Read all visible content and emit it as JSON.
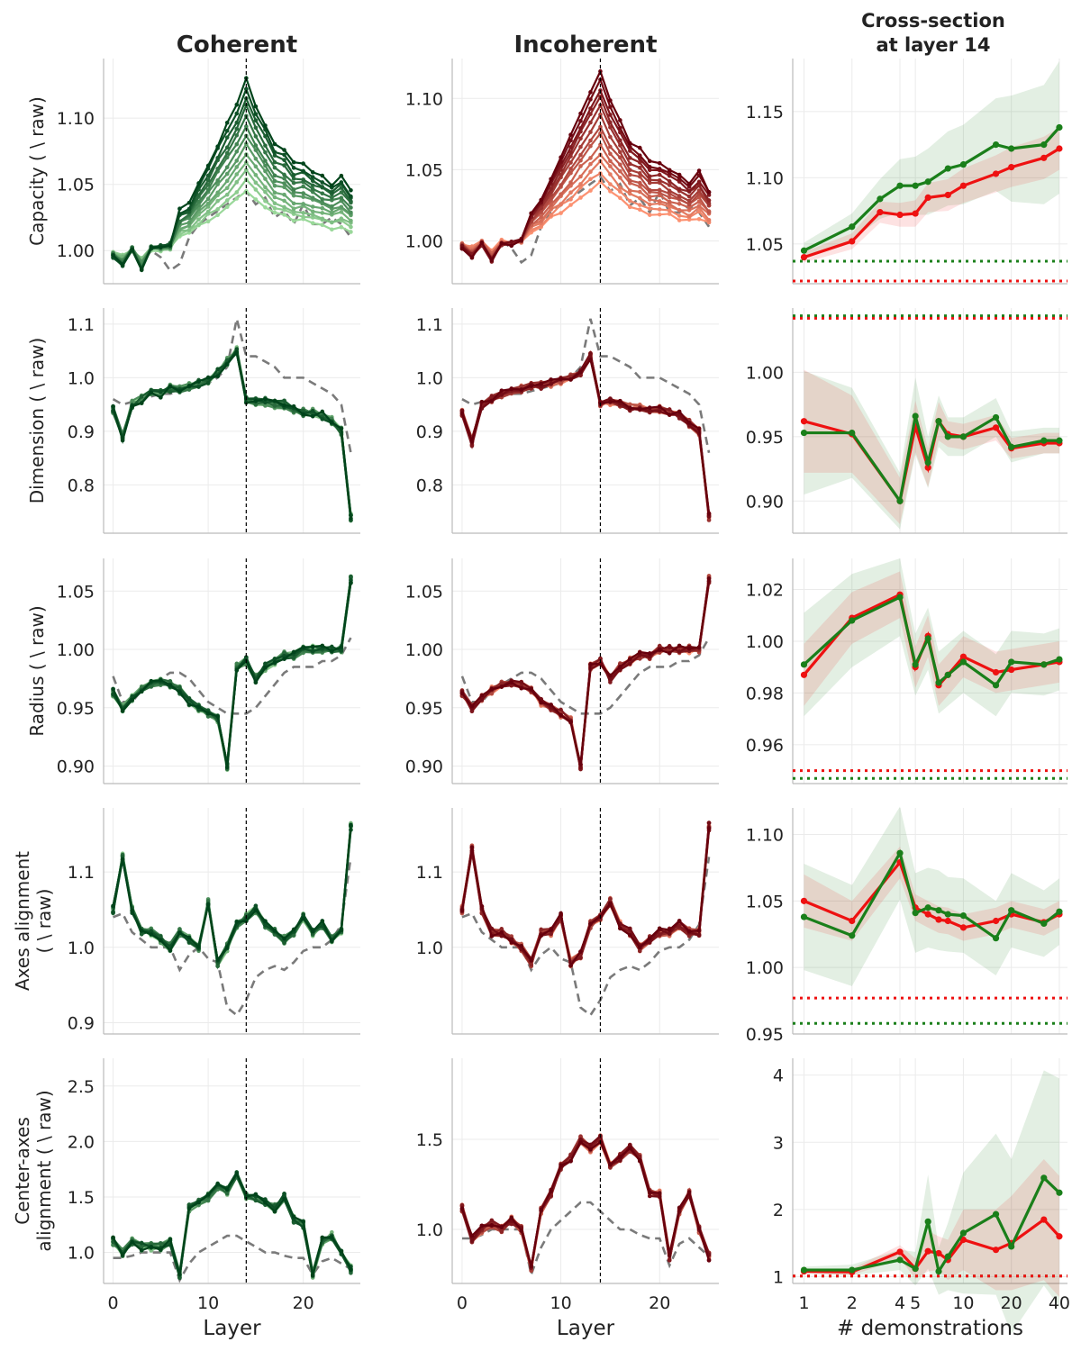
{
  "figure": {
    "column_titles": [
      "Coherent",
      "Incoherent",
      "Cross-section\nat layer 14"
    ],
    "xlabel_layer": "Layer",
    "xlabel_demos": "# demonstrations"
  },
  "chart_data": {
    "type": "line",
    "layers": [
      0,
      1,
      2,
      3,
      4,
      5,
      6,
      7,
      8,
      9,
      10,
      11,
      12,
      13,
      14,
      15,
      16,
      17,
      18,
      19,
      20,
      21,
      22,
      23,
      24,
      25
    ],
    "marker_layer": 14,
    "demonstrations": [
      1,
      2,
      3,
      4,
      5,
      6,
      7,
      8,
      10,
      12,
      16,
      20,
      25,
      32,
      40
    ],
    "demo_ticks": [
      1,
      2,
      4,
      5,
      10,
      20,
      40
    ],
    "colors": {
      "coherent": "#1a7f1a",
      "incoherent": "#ee1111",
      "raw": "#7a7a7a",
      "coherent_light": "#9ad89a",
      "coherent_dark": "#00441b",
      "incoherent_light": "#fc9272",
      "incoherent_dark": "#67000d"
    },
    "rows": [
      {
        "ylabel": "Capacity ( \\ raw)",
        "layer_ylim": [
          0.975,
          1.145
        ],
        "layer_yticks": [
          "1.00",
          "1.05",
          "1.10"
        ],
        "inc_ylim": [
          0.97,
          1.128
        ],
        "inc_yticks": [
          "1.00",
          "1.05",
          "1.10"
        ],
        "raw": [
          0.998,
          0.99,
          1.0,
          0.99,
          1.0,
          0.995,
          0.985,
          0.99,
          1.01,
          1.02,
          1.025,
          1.03,
          1.035,
          1.04,
          1.045,
          1.035,
          1.04,
          1.025,
          1.03,
          1.02,
          1.035,
          1.02,
          1.02,
          1.025,
          1.02,
          1.01
        ],
        "coherent_base": [
          0.995,
          0.988,
          1.002,
          0.985,
          1.003,
          1.003,
          1.005,
          1.03,
          1.035,
          1.05,
          1.065,
          1.08,
          1.095,
          1.11,
          1.13,
          1.11,
          1.095,
          1.08,
          1.075,
          1.065,
          1.065,
          1.06,
          1.055,
          1.05,
          1.055,
          1.045
        ],
        "incoherent_base": [
          0.995,
          0.988,
          0.998,
          0.985,
          0.998,
          0.998,
          1.0,
          1.02,
          1.03,
          1.045,
          1.06,
          1.075,
          1.09,
          1.105,
          1.12,
          1.1,
          1.085,
          1.07,
          1.065,
          1.055,
          1.055,
          1.05,
          1.045,
          1.04,
          1.048,
          1.035
        ],
        "cross": {
          "ylim": [
            1.02,
            1.19
          ],
          "yticks": [
            "1.05",
            "1.10",
            "1.15"
          ],
          "coherent": [
            1.045,
            1.063,
            1.084,
            1.094,
            1.094,
            1.097,
            1.107,
            1.11,
            1.125,
            1.122,
            1.125,
            1.138
          ],
          "incoherent": [
            1.04,
            1.052,
            1.074,
            1.072,
            1.073,
            1.085,
            1.087,
            1.094,
            1.103,
            1.108,
            1.115,
            1.122
          ],
          "coherent_band": [
            0.006,
            0.01,
            0.015,
            0.02,
            0.022,
            0.025,
            0.028,
            0.03,
            0.035,
            0.04,
            0.045,
            0.05
          ],
          "incoherent_band": [
            0.004,
            0.006,
            0.008,
            0.009,
            0.01,
            0.011,
            0.012,
            0.013,
            0.014,
            0.015,
            0.016,
            0.016
          ],
          "demos_used": [
            1,
            2,
            3,
            4,
            5,
            6,
            8,
            10,
            16,
            20,
            32,
            40
          ],
          "raw_coherent": 1.037,
          "raw_incoherent": 1.022
        }
      },
      {
        "ylabel": "Dimension ( \\ raw)",
        "layer_ylim": [
          0.71,
          1.13
        ],
        "layer_yticks": [
          "0.8",
          "0.9",
          "1.0",
          "1.1"
        ],
        "inc_ylim": [
          0.71,
          1.13
        ],
        "inc_yticks": [
          "0.8",
          "0.9",
          "1.0",
          "1.1"
        ],
        "raw": [
          0.96,
          0.95,
          0.955,
          0.96,
          0.965,
          0.97,
          0.97,
          0.975,
          0.98,
          0.985,
          0.99,
          1.0,
          1.02,
          1.11,
          1.04,
          1.04,
          1.03,
          1.02,
          1.0,
          1.0,
          1.0,
          0.99,
          0.98,
          0.97,
          0.95,
          0.86
        ],
        "coherent_base": [
          0.94,
          0.89,
          0.95,
          0.96,
          0.97,
          0.97,
          0.98,
          0.98,
          0.985,
          0.99,
          0.995,
          1.01,
          1.03,
          1.05,
          0.96,
          0.955,
          0.955,
          0.95,
          0.95,
          0.94,
          0.935,
          0.935,
          0.93,
          0.92,
          0.9,
          0.74
        ],
        "incoherent_base": [
          0.935,
          0.88,
          0.95,
          0.96,
          0.97,
          0.975,
          0.98,
          0.985,
          0.985,
          0.99,
          0.995,
          1.0,
          1.01,
          1.04,
          0.95,
          0.955,
          0.95,
          0.945,
          0.945,
          0.94,
          0.94,
          0.935,
          0.93,
          0.915,
          0.9,
          0.74
        ],
        "cross": {
          "ylim": [
            0.875,
            1.05
          ],
          "yticks": [
            "0.90",
            "0.95",
            "1.00"
          ],
          "coherent": [
            0.953,
            0.953,
            0.9,
            0.966,
            0.93,
            0.962,
            0.95,
            0.95,
            0.965,
            0.942,
            0.947,
            0.947
          ],
          "incoherent": [
            0.962,
            0.952,
            0.9,
            0.958,
            0.926,
            0.962,
            0.952,
            0.95,
            0.957,
            0.941,
            0.945,
            0.945
          ],
          "coherent_band": [
            0.048,
            0.035,
            0.022,
            0.03,
            0.02,
            0.02,
            0.015,
            0.015,
            0.015,
            0.012,
            0.01,
            0.01
          ],
          "incoherent_band": [
            0.04,
            0.03,
            0.018,
            0.02,
            0.015,
            0.015,
            0.01,
            0.01,
            0.01,
            0.008,
            0.008,
            0.008
          ],
          "demos_used": [
            1,
            2,
            4,
            5,
            6,
            7,
            8,
            10,
            16,
            20,
            32,
            40
          ],
          "raw_coherent": 1.044,
          "raw_incoherent": 1.042
        }
      },
      {
        "ylabel": "Radius ( \\ raw)",
        "layer_ylim": [
          0.885,
          1.078
        ],
        "layer_yticks": [
          "0.90",
          "0.95",
          "1.00",
          "1.05"
        ],
        "inc_ylim": [
          0.885,
          1.078
        ],
        "inc_yticks": [
          "0.90",
          "0.95",
          "1.00",
          "1.05"
        ],
        "raw": [
          0.977,
          0.955,
          0.955,
          0.965,
          0.97,
          0.975,
          0.98,
          0.98,
          0.975,
          0.965,
          0.955,
          0.95,
          0.945,
          0.945,
          0.945,
          0.95,
          0.96,
          0.97,
          0.98,
          0.985,
          0.985,
          0.985,
          0.99,
          0.99,
          0.995,
          1.01
        ],
        "coherent_base": [
          0.963,
          0.95,
          0.958,
          0.965,
          0.97,
          0.972,
          0.97,
          0.965,
          0.955,
          0.95,
          0.945,
          0.94,
          0.9,
          0.985,
          0.99,
          0.975,
          0.985,
          0.99,
          0.995,
          0.995,
          1.0,
          1.0,
          1.0,
          1.0,
          1.0,
          1.06
        ],
        "incoherent_base": [
          0.963,
          0.95,
          0.958,
          0.965,
          0.97,
          0.972,
          0.97,
          0.965,
          0.955,
          0.95,
          0.945,
          0.94,
          0.9,
          0.985,
          0.99,
          0.975,
          0.985,
          0.99,
          0.995,
          0.995,
          1.0,
          1.0,
          1.0,
          1.0,
          1.0,
          1.06
        ],
        "cross": {
          "ylim": [
            0.945,
            1.032
          ],
          "yticks": [
            "0.96",
            "0.98",
            "1.00",
            "1.02"
          ],
          "coherent": [
            0.991,
            1.008,
            1.017,
            0.991,
            1.001,
            0.984,
            0.987,
            0.992,
            0.983,
            0.992,
            0.991,
            0.993
          ],
          "incoherent": [
            0.987,
            1.009,
            1.018,
            0.99,
            1.002,
            0.983,
            0.987,
            0.994,
            0.988,
            0.989,
            0.991,
            0.992
          ],
          "coherent_band": [
            0.02,
            0.018,
            0.015,
            0.012,
            0.012,
            0.012,
            0.012,
            0.012,
            0.012,
            0.012,
            0.012,
            0.012
          ],
          "incoherent_band": [
            0.012,
            0.01,
            0.009,
            0.008,
            0.008,
            0.008,
            0.008,
            0.008,
            0.008,
            0.008,
            0.008,
            0.008
          ],
          "demos_used": [
            1,
            2,
            4,
            5,
            6,
            7,
            8,
            10,
            16,
            20,
            32,
            40
          ],
          "raw_coherent": 0.947,
          "raw_incoherent": 0.95
        }
      },
      {
        "ylabel": "Axes alignment\n( \\ raw)",
        "layer_ylim": [
          0.885,
          1.185
        ],
        "layer_yticks": [
          "0.9",
          "1.0",
          "1.1"
        ],
        "inc_ylim": [
          0.885,
          1.185
        ],
        "inc_yticks": [
          "1.0",
          "1.1"
        ],
        "raw": [
          1.04,
          1.045,
          1.02,
          1.01,
          1.0,
          1.0,
          1.0,
          0.97,
          0.99,
          1.0,
          0.985,
          0.98,
          0.92,
          0.91,
          0.93,
          0.96,
          0.97,
          0.975,
          0.97,
          0.98,
          0.995,
          1.0,
          1.0,
          1.01,
          1.03,
          1.12
        ],
        "coherent_base": [
          1.05,
          1.12,
          1.05,
          1.02,
          1.02,
          1.01,
          1.0,
          1.02,
          1.01,
          1.0,
          1.06,
          0.98,
          1.0,
          1.03,
          1.04,
          1.05,
          1.03,
          1.02,
          1.01,
          1.02,
          1.04,
          1.02,
          1.03,
          1.01,
          1.02,
          1.16
        ],
        "incoherent_base": [
          1.05,
          1.13,
          1.05,
          1.02,
          1.02,
          1.01,
          1.0,
          0.98,
          1.02,
          1.02,
          1.04,
          0.98,
          0.99,
          1.03,
          1.04,
          1.06,
          1.03,
          1.02,
          1.0,
          1.01,
          1.02,
          1.02,
          1.03,
          1.02,
          1.02,
          1.16
        ],
        "cross": {
          "ylim": [
            0.95,
            1.12
          ],
          "yticks": [
            "0.95",
            "1.00",
            "1.05",
            "1.10"
          ],
          "coherent": [
            1.038,
            1.024,
            1.086,
            1.041,
            1.045,
            1.043,
            1.04,
            1.039,
            1.022,
            1.043,
            1.033,
            1.042
          ],
          "incoherent": [
            1.05,
            1.035,
            1.079,
            1.045,
            1.04,
            1.036,
            1.035,
            1.03,
            1.035,
            1.04,
            1.034,
            1.04
          ],
          "coherent_band": [
            0.04,
            0.038,
            0.035,
            0.03,
            0.03,
            0.03,
            0.028,
            0.028,
            0.028,
            0.028,
            0.025,
            0.025
          ],
          "incoherent_band": [
            0.02,
            0.015,
            0.012,
            0.01,
            0.01,
            0.01,
            0.01,
            0.01,
            0.01,
            0.01,
            0.01,
            0.01
          ],
          "demos_used": [
            1,
            2,
            4,
            5,
            6,
            7,
            8,
            10,
            16,
            20,
            32,
            40
          ],
          "raw_coherent": 0.958,
          "raw_incoherent": 0.977
        }
      },
      {
        "ylabel": "Center-axes\nalignment ( \\ raw)",
        "layer_ylim": [
          0.72,
          2.75
        ],
        "layer_yticks": [
          "1.0",
          "1.5",
          "2.0",
          "2.5"
        ],
        "inc_ylim": [
          0.7,
          1.95
        ],
        "inc_yticks": [
          "1.0",
          "1.5"
        ],
        "raw": [
          0.95,
          0.95,
          0.97,
          1.0,
          1.0,
          1.0,
          1.0,
          0.75,
          0.9,
          1.0,
          1.05,
          1.1,
          1.15,
          1.15,
          1.1,
          1.05,
          1.0,
          1.0,
          0.97,
          0.95,
          0.95,
          0.8,
          0.92,
          0.95,
          0.9,
          0.85
        ],
        "coherent_base": [
          1.1,
          1.0,
          1.1,
          1.05,
          1.05,
          1.05,
          1.1,
          0.8,
          1.4,
          1.45,
          1.5,
          1.6,
          1.55,
          1.7,
          1.5,
          1.5,
          1.45,
          1.4,
          1.5,
          1.3,
          1.25,
          0.8,
          1.1,
          1.15,
          1.0,
          0.85
        ],
        "incoherent_base": [
          1.12,
          0.95,
          1.0,
          1.03,
          1.0,
          1.05,
          1.0,
          0.78,
          1.1,
          1.2,
          1.35,
          1.4,
          1.5,
          1.45,
          1.5,
          1.35,
          1.4,
          1.45,
          1.4,
          1.2,
          1.2,
          0.85,
          1.1,
          1.2,
          1.0,
          0.85
        ],
        "cross": {
          "ylim": [
            0.9,
            4.25
          ],
          "yticks": [
            "1",
            "2",
            "3",
            "4"
          ],
          "coherent": [
            1.1,
            1.1,
            1.25,
            1.12,
            1.82,
            1.08,
            1.3,
            1.65,
            1.93,
            1.45,
            2.47,
            2.25
          ],
          "incoherent": [
            1.08,
            1.07,
            1.37,
            1.12,
            1.38,
            1.35,
            1.25,
            1.55,
            1.4,
            1.5,
            1.85,
            1.6
          ],
          "coherent_band": [
            0.05,
            0.08,
            0.15,
            0.25,
            0.7,
            0.35,
            0.5,
            0.9,
            1.2,
            1.3,
            1.6,
            1.7
          ],
          "incoherent_band": [
            0.03,
            0.05,
            0.1,
            0.15,
            0.3,
            0.25,
            0.3,
            0.45,
            0.6,
            0.7,
            0.9,
            0.9
          ],
          "demos_used": [
            1,
            2,
            4,
            5,
            6,
            7,
            8,
            10,
            16,
            20,
            32,
            40
          ],
          "raw_coherent": 1.01,
          "raw_incoherent": 1.01
        }
      }
    ]
  }
}
